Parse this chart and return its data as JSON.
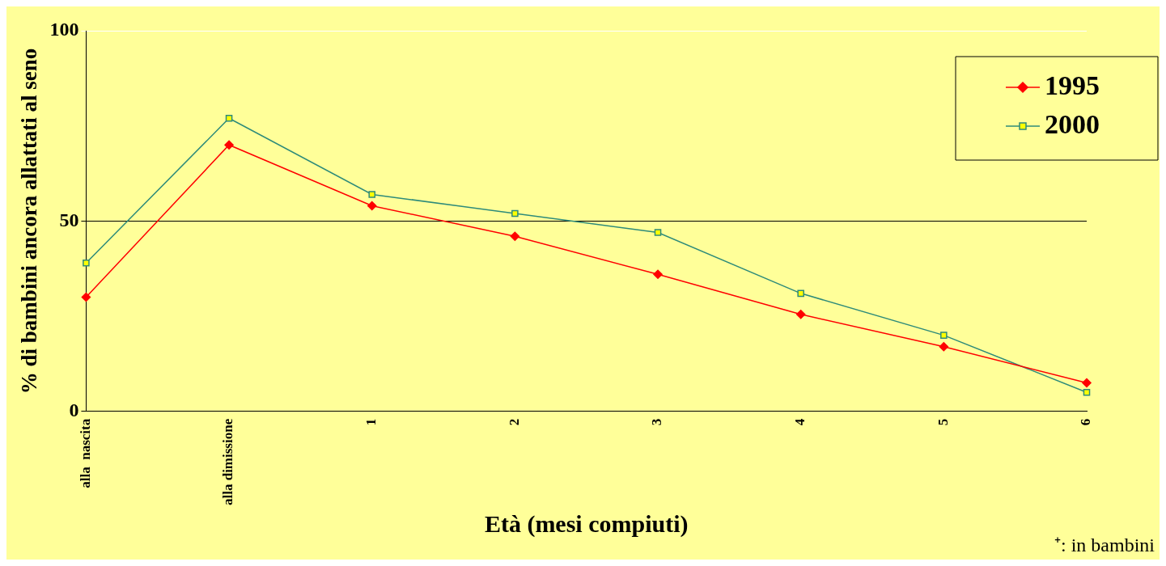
{
  "chart_data": {
    "type": "line",
    "xlabel": "Età (mesi compiuti)",
    "ylabel": "% di bambini ancora allattati al seno",
    "categories": [
      "alla  nascita",
      "alla dimissione",
      "1",
      "2",
      "3",
      "4",
      "5",
      "6"
    ],
    "series": [
      {
        "name": "1995",
        "color": "#ff0000",
        "marker": "diamond",
        "values": [
          30,
          70,
          54,
          46,
          36,
          25.5,
          17,
          7.5
        ]
      },
      {
        "name": "2000",
        "color": "#2e8b7a",
        "marker": "square",
        "values": [
          39,
          77,
          57,
          52,
          47,
          31,
          20,
          5
        ]
      }
    ],
    "ylim": [
      0,
      100
    ],
    "yticks": [
      0,
      50,
      100
    ],
    "grid": "y",
    "legend": "top right",
    "annotations": [
      "⁺: in bambini"
    ]
  }
}
